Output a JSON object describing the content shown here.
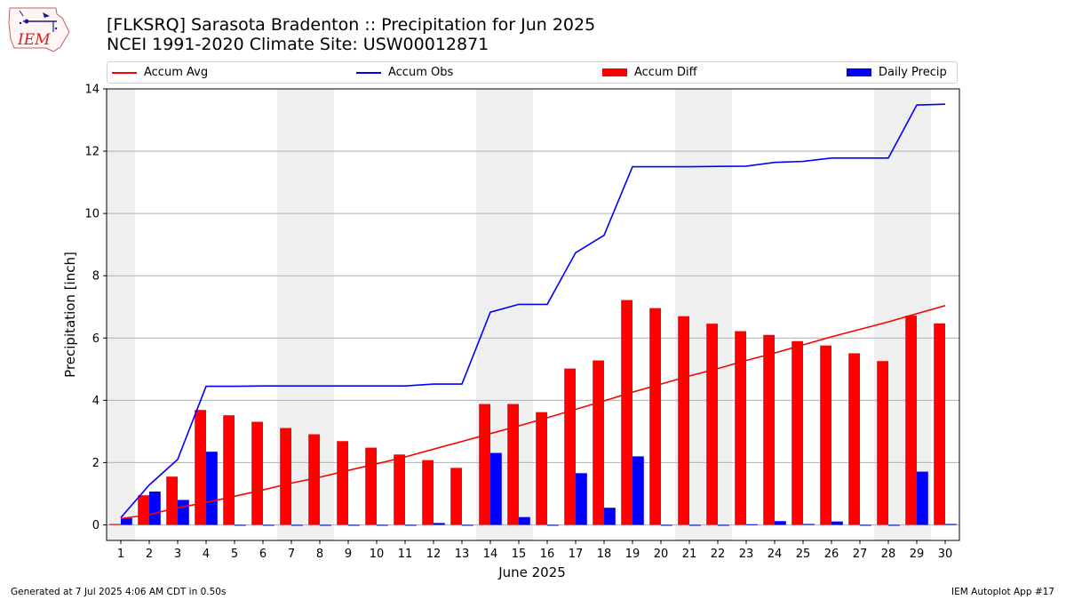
{
  "header": {
    "title_line1": "[FLKSRQ] Sarasota Bradenton :: Precipitation for Jun 2025",
    "title_line2": "NCEI 1991-2020 Climate Site: USW00012871",
    "logo_text": "IEM"
  },
  "footer": {
    "left": "Generated at 7 Jul 2025 4:06 AM CDT in 0.50s",
    "right": "IEM Autoplot App #17"
  },
  "legend": [
    {
      "label": "Accum Avg",
      "kind": "line",
      "color": "#ff0000"
    },
    {
      "label": "Accum Obs",
      "kind": "line",
      "color": "#0000ff"
    },
    {
      "label": "Accum Diff",
      "kind": "bar",
      "color": "#ff0000"
    },
    {
      "label": "Daily Precip",
      "kind": "bar",
      "color": "#0000ff"
    }
  ],
  "chart_data": {
    "type": "bar",
    "xlabel": "June 2025",
    "ylabel": "Precipitation [inch]",
    "ylim": [
      -0.5,
      14
    ],
    "yticks": [
      0,
      2,
      4,
      6,
      8,
      10,
      12,
      14
    ],
    "grid": true,
    "legend_position": "top",
    "days": [
      1,
      2,
      3,
      4,
      5,
      6,
      7,
      8,
      9,
      10,
      11,
      12,
      13,
      14,
      15,
      16,
      17,
      18,
      19,
      20,
      21,
      22,
      23,
      24,
      25,
      26,
      27,
      28,
      29,
      30
    ],
    "weekend_shading": [
      [
        1,
        1
      ],
      [
        7,
        8
      ],
      [
        14,
        15
      ],
      [
        21,
        22
      ],
      [
        28,
        29
      ]
    ],
    "series": [
      {
        "name": "Accum Avg",
        "kind": "line",
        "color": "#ff0000",
        "values": [
          0.2,
          0.33,
          0.55,
          0.72,
          0.92,
          1.12,
          1.34,
          1.53,
          1.75,
          1.96,
          2.18,
          2.43,
          2.68,
          2.93,
          3.18,
          3.44,
          3.71,
          3.98,
          4.26,
          4.52,
          4.78,
          5.02,
          5.28,
          5.52,
          5.78,
          6.04,
          6.28,
          6.52,
          6.78,
          7.04
        ]
      },
      {
        "name": "Accum Obs",
        "kind": "line",
        "color": "#0000ff",
        "values": [
          0.23,
          1.28,
          2.1,
          4.45,
          4.45,
          4.46,
          4.46,
          4.46,
          4.46,
          4.46,
          4.46,
          4.52,
          4.52,
          6.83,
          7.08,
          7.08,
          8.74,
          9.3,
          11.5,
          11.5,
          11.5,
          11.51,
          11.52,
          11.64,
          11.67,
          11.78,
          11.78,
          11.78,
          13.48,
          13.51
        ]
      },
      {
        "name": "Accum Diff",
        "kind": "bar",
        "color": "#ff0000",
        "values": [
          0.03,
          0.95,
          1.55,
          3.69,
          3.52,
          3.31,
          3.11,
          2.91,
          2.69,
          2.48,
          2.26,
          2.08,
          1.83,
          3.88,
          3.88,
          3.62,
          5.02,
          5.28,
          7.22,
          6.96,
          6.7,
          6.46,
          6.22,
          6.1,
          5.9,
          5.76,
          5.51,
          5.26,
          6.72,
          6.47
        ]
      },
      {
        "name": "Daily Precip",
        "kind": "bar",
        "color": "#0000ff",
        "values": [
          0.22,
          1.07,
          0.8,
          2.35,
          0,
          0,
          0,
          0,
          0,
          0,
          0,
          0.06,
          0,
          2.31,
          0.25,
          0,
          1.66,
          0.55,
          2.2,
          0,
          0,
          0,
          0.02,
          0.12,
          0.03,
          0.11,
          0,
          0,
          1.71,
          0.03
        ]
      }
    ]
  }
}
